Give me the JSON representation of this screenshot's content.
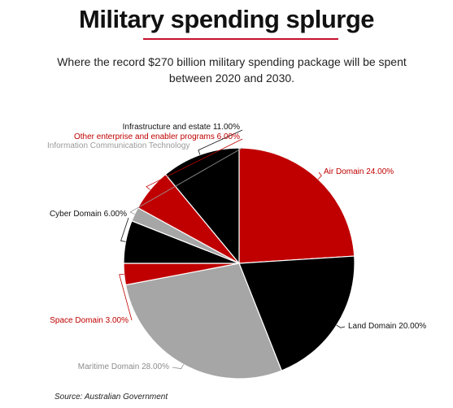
{
  "title": "Military spending splurge",
  "subtitle": "Where the record $270 billion military spending package will be spent between 2020 and 2030.",
  "source": "Source: Australian Government",
  "chart_data": {
    "type": "pie",
    "slices": [
      {
        "name": "Air Domain",
        "label": "Air Domain 24.00%",
        "value": 24.0,
        "color": "#c00000",
        "label_color": "#c00000"
      },
      {
        "name": "Land Domain",
        "label": "Land Domain 20.00%",
        "value": 20.0,
        "color": "#000000",
        "label_color": "#111111"
      },
      {
        "name": "Maritime Domain",
        "label": "Maritime Domain 28.00%",
        "value": 28.0,
        "color": "#a6a6a6",
        "label_color": "#8c8c8c"
      },
      {
        "name": "Space Domain",
        "label": "Space Domain 3.00%",
        "value": 3.0,
        "color": "#c00000",
        "label_color": "#c00000"
      },
      {
        "name": "Cyber Domain",
        "label": "Cyber Domain 6.00%",
        "value": 6.0,
        "color": "#000000",
        "label_color": "#111111"
      },
      {
        "name": "Information Communication Technology",
        "label": "Information Communication Technology",
        "value": 2.0,
        "color": "#a6a6a6",
        "label_color": "#9a9a9a"
      },
      {
        "name": "Other enterprise and enabler programs",
        "label": "Other enterprise and enabler programs 6.00%",
        "value": 6.0,
        "color": "#c00000",
        "label_color": "#c00000"
      },
      {
        "name": "Infrastructure and estate",
        "label": "Infrastructure and estate 11.00%",
        "value": 11.0,
        "color": "#000000",
        "label_color": "#111111"
      }
    ]
  }
}
